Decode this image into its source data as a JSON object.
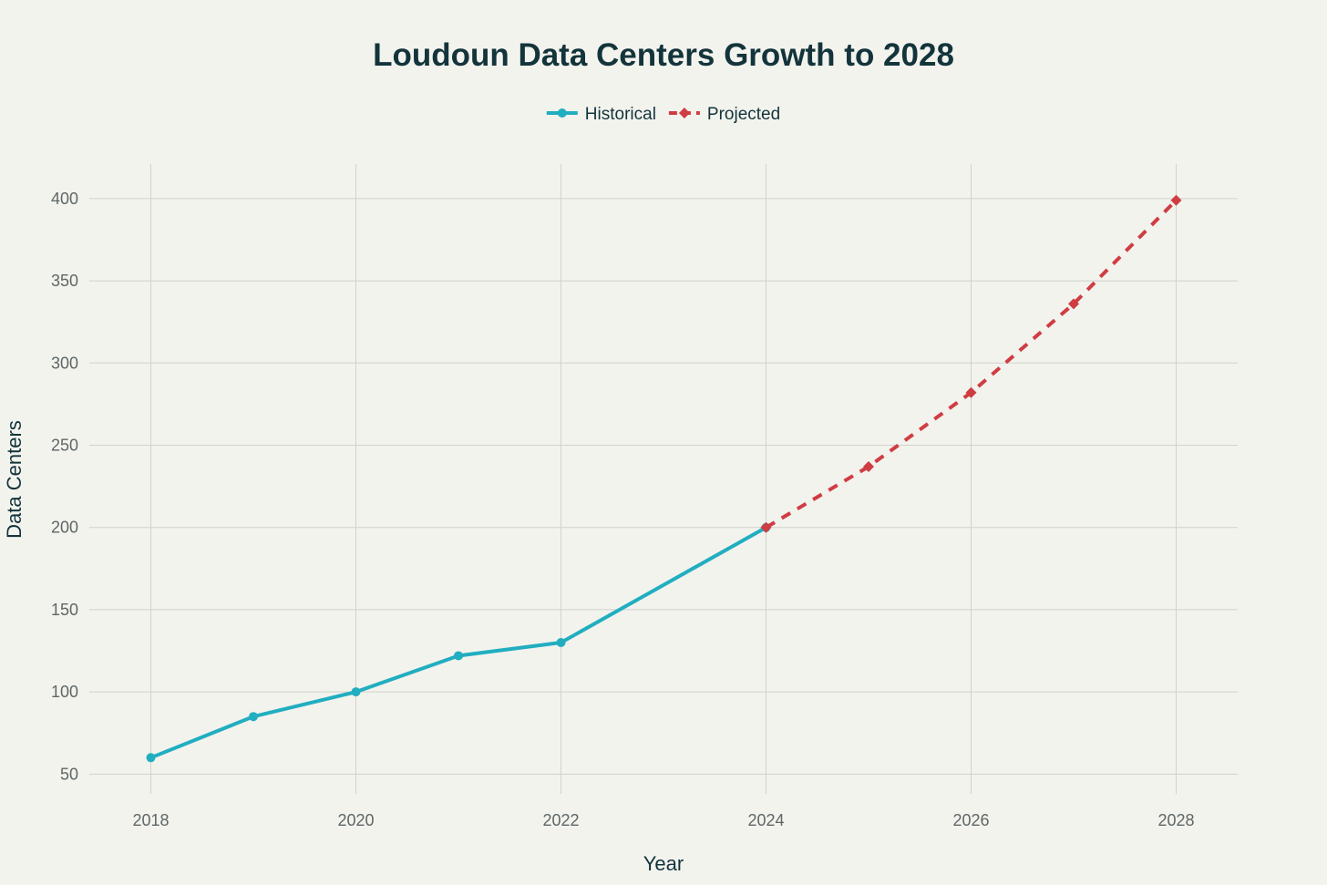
{
  "chart_data": {
    "type": "line",
    "title": "Loudoun Data Centers Growth to 2028",
    "xlabel": "Year",
    "ylabel": "Data Centers",
    "xlim": [
      2017.4,
      2028.6
    ],
    "ylim": [
      38,
      421
    ],
    "xticks": [
      2018,
      2020,
      2022,
      2024,
      2026,
      2028
    ],
    "yticks": [
      50,
      100,
      150,
      200,
      250,
      300,
      350,
      400
    ],
    "grid": true,
    "legend_position": "top-center",
    "series": [
      {
        "name": "Historical",
        "color": "#21aec0",
        "line_style": "solid",
        "marker": "circle",
        "x": [
          2018,
          2019,
          2020,
          2021,
          2022,
          2024
        ],
        "y": [
          60,
          85,
          100,
          122,
          130,
          200
        ]
      },
      {
        "name": "Projected",
        "color": "#cf3d43",
        "line_style": "dashed",
        "marker": "diamond",
        "x": [
          2024,
          2025,
          2026,
          2027,
          2028
        ],
        "y": [
          200,
          237,
          282,
          336,
          399
        ]
      }
    ]
  }
}
